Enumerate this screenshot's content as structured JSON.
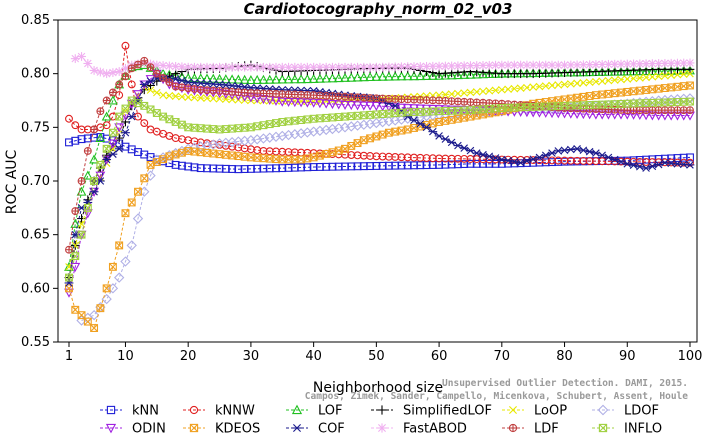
{
  "chart_data": {
    "type": "line",
    "title": "Cardiotocography_norm_02_v03",
    "xlabel": "Neighborhood size",
    "ylabel": "ROC AUC",
    "xlim": [
      1,
      100
    ],
    "ylim": [
      0.55,
      0.85
    ],
    "x_ticks": [
      1,
      10,
      20,
      30,
      40,
      50,
      60,
      70,
      80,
      90,
      100
    ],
    "y_ticks": [
      0.55,
      0.6,
      0.65,
      0.7,
      0.75,
      0.8,
      0.85
    ],
    "grid": false,
    "legend_position": "bottom",
    "credit": {
      "line1": "Campos, Zimek, Sander, Campello, Micenkova, Schubert, Assent, Houle",
      "line2": "Unsupervised Outlier Detection. DAMI, 2015."
    },
    "series": [
      {
        "name": "kNN",
        "color": "#1f1fd6",
        "marker": "square",
        "points": [
          [
            1,
            0.736
          ],
          [
            3,
            0.739
          ],
          [
            6,
            0.741
          ],
          [
            8,
            0.738
          ],
          [
            10,
            0.732
          ],
          [
            12,
            0.727
          ],
          [
            15,
            0.72
          ],
          [
            18,
            0.715
          ],
          [
            22,
            0.712
          ],
          [
            28,
            0.711
          ],
          [
            35,
            0.712
          ],
          [
            40,
            0.713
          ],
          [
            50,
            0.714
          ],
          [
            60,
            0.715
          ],
          [
            65,
            0.716
          ],
          [
            70,
            0.716
          ],
          [
            80,
            0.718
          ],
          [
            90,
            0.719
          ],
          [
            100,
            0.722
          ]
        ]
      },
      {
        "name": "kNNW",
        "color": "#e02020",
        "marker": "circle",
        "points": [
          [
            1,
            0.758
          ],
          [
            2,
            0.752
          ],
          [
            3,
            0.748
          ],
          [
            5,
            0.748
          ],
          [
            7,
            0.752
          ],
          [
            8,
            0.76
          ],
          [
            9,
            0.78
          ],
          [
            10,
            0.826
          ],
          [
            11,
            0.79
          ],
          [
            12,
            0.76
          ],
          [
            14,
            0.748
          ],
          [
            18,
            0.74
          ],
          [
            22,
            0.736
          ],
          [
            27,
            0.732
          ],
          [
            32,
            0.728
          ],
          [
            40,
            0.726
          ],
          [
            50,
            0.723
          ],
          [
            60,
            0.721
          ],
          [
            70,
            0.72
          ],
          [
            80,
            0.719
          ],
          [
            90,
            0.718
          ],
          [
            100,
            0.717
          ]
        ]
      },
      {
        "name": "LOF",
        "color": "#20c020",
        "marker": "triangle",
        "points": [
          [
            1,
            0.62
          ],
          [
            2,
            0.66
          ],
          [
            3,
            0.69
          ],
          [
            5,
            0.72
          ],
          [
            7,
            0.76
          ],
          [
            9,
            0.79
          ],
          [
            11,
            0.806
          ],
          [
            13,
            0.808
          ],
          [
            16,
            0.8
          ],
          [
            20,
            0.796
          ],
          [
            30,
            0.794
          ],
          [
            40,
            0.795
          ],
          [
            50,
            0.797
          ],
          [
            60,
            0.798
          ],
          [
            70,
            0.8
          ],
          [
            80,
            0.801
          ],
          [
            90,
            0.802
          ],
          [
            100,
            0.803
          ]
        ]
      },
      {
        "name": "SimplifiedLOF",
        "color": "#000000",
        "marker": "plus",
        "points": [
          [
            1,
            0.61
          ],
          [
            2,
            0.64
          ],
          [
            3,
            0.665
          ],
          [
            5,
            0.7
          ],
          [
            7,
            0.724
          ],
          [
            9,
            0.74
          ],
          [
            11,
            0.77
          ],
          [
            13,
            0.785
          ],
          [
            15,
            0.793
          ],
          [
            18,
            0.8
          ],
          [
            20,
            0.804
          ],
          [
            25,
            0.805
          ],
          [
            30,
            0.808
          ],
          [
            35,
            0.802
          ],
          [
            40,
            0.803
          ],
          [
            45,
            0.804
          ],
          [
            50,
            0.805
          ],
          [
            55,
            0.805
          ],
          [
            60,
            0.8
          ],
          [
            65,
            0.802
          ],
          [
            70,
            0.8
          ],
          [
            75,
            0.8
          ],
          [
            80,
            0.801
          ],
          [
            85,
            0.802
          ],
          [
            90,
            0.803
          ],
          [
            95,
            0.804
          ],
          [
            100,
            0.804
          ]
        ]
      },
      {
        "name": "LoOP",
        "color": "#e8e800",
        "marker": "cross",
        "points": [
          [
            1,
            0.62
          ],
          [
            3,
            0.66
          ],
          [
            5,
            0.69
          ],
          [
            8,
            0.73
          ],
          [
            10,
            0.765
          ],
          [
            13,
            0.787
          ],
          [
            16,
            0.78
          ],
          [
            20,
            0.778
          ],
          [
            30,
            0.775
          ],
          [
            40,
            0.774
          ],
          [
            50,
            0.776
          ],
          [
            60,
            0.78
          ],
          [
            70,
            0.785
          ],
          [
            80,
            0.79
          ],
          [
            90,
            0.795
          ],
          [
            100,
            0.8
          ]
        ]
      },
      {
        "name": "LDOF",
        "color": "#b0b0e6",
        "marker": "diamond",
        "points": [
          [
            3,
            0.57
          ],
          [
            5,
            0.575
          ],
          [
            7,
            0.59
          ],
          [
            9,
            0.61
          ],
          [
            11,
            0.64
          ],
          [
            13,
            0.69
          ],
          [
            15,
            0.72
          ],
          [
            20,
            0.73
          ],
          [
            25,
            0.735
          ],
          [
            30,
            0.738
          ],
          [
            35,
            0.742
          ],
          [
            40,
            0.746
          ],
          [
            45,
            0.75
          ],
          [
            50,
            0.754
          ],
          [
            55,
            0.758
          ],
          [
            60,
            0.762
          ],
          [
            65,
            0.764
          ],
          [
            70,
            0.765
          ],
          [
            75,
            0.767
          ],
          [
            80,
            0.768
          ],
          [
            85,
            0.77
          ],
          [
            90,
            0.772
          ],
          [
            95,
            0.775
          ],
          [
            100,
            0.777
          ]
        ]
      },
      {
        "name": "ODIN",
        "color": "#a020e0",
        "marker": "triangle-down",
        "points": [
          [
            1,
            0.596
          ],
          [
            2,
            0.62
          ],
          [
            3,
            0.65
          ],
          [
            5,
            0.69
          ],
          [
            7,
            0.72
          ],
          [
            9,
            0.75
          ],
          [
            11,
            0.772
          ],
          [
            13,
            0.79
          ],
          [
            15,
            0.8
          ],
          [
            17,
            0.79
          ],
          [
            20,
            0.785
          ],
          [
            25,
            0.782
          ],
          [
            30,
            0.778
          ],
          [
            35,
            0.774
          ],
          [
            40,
            0.773
          ],
          [
            45,
            0.771
          ],
          [
            50,
            0.77
          ],
          [
            55,
            0.768
          ],
          [
            60,
            0.767
          ],
          [
            65,
            0.766
          ],
          [
            70,
            0.765
          ],
          [
            75,
            0.764
          ],
          [
            80,
            0.763
          ],
          [
            85,
            0.762
          ],
          [
            90,
            0.762
          ],
          [
            95,
            0.761
          ],
          [
            100,
            0.761
          ]
        ]
      },
      {
        "name": "KDEOS",
        "color": "#f0a020",
        "marker": "square-x",
        "points": [
          [
            1,
            0.6
          ],
          [
            2,
            0.58
          ],
          [
            3,
            0.575
          ],
          [
            5,
            0.563
          ],
          [
            7,
            0.6
          ],
          [
            9,
            0.64
          ],
          [
            10,
            0.67
          ],
          [
            12,
            0.69
          ],
          [
            14,
            0.715
          ],
          [
            17,
            0.723
          ],
          [
            20,
            0.728
          ],
          [
            25,
            0.725
          ],
          [
            30,
            0.722
          ],
          [
            35,
            0.72
          ],
          [
            38,
            0.72
          ],
          [
            40,
            0.722
          ],
          [
            45,
            0.73
          ],
          [
            48,
            0.738
          ],
          [
            52,
            0.745
          ],
          [
            55,
            0.748
          ],
          [
            60,
            0.755
          ],
          [
            65,
            0.76
          ],
          [
            70,
            0.765
          ],
          [
            75,
            0.772
          ],
          [
            80,
            0.776
          ],
          [
            85,
            0.78
          ],
          [
            90,
            0.783
          ],
          [
            95,
            0.786
          ],
          [
            100,
            0.789
          ]
        ]
      },
      {
        "name": "COF",
        "color": "#1a1a8c",
        "marker": "asterisk",
        "points": [
          [
            1,
            0.605
          ],
          [
            2,
            0.65
          ],
          [
            3,
            0.675
          ],
          [
            4,
            0.68
          ],
          [
            5,
            0.69
          ],
          [
            6,
            0.7
          ],
          [
            7,
            0.72
          ],
          [
            9,
            0.73
          ],
          [
            11,
            0.76
          ],
          [
            13,
            0.79
          ],
          [
            15,
            0.796
          ],
          [
            18,
            0.795
          ],
          [
            20,
            0.792
          ],
          [
            25,
            0.79
          ],
          [
            30,
            0.787
          ],
          [
            35,
            0.785
          ],
          [
            40,
            0.784
          ],
          [
            45,
            0.78
          ],
          [
            50,
            0.777
          ],
          [
            53,
            0.77
          ],
          [
            55,
            0.76
          ],
          [
            58,
            0.75
          ],
          [
            60,
            0.742
          ],
          [
            63,
            0.733
          ],
          [
            66,
            0.726
          ],
          [
            70,
            0.72
          ],
          [
            73,
            0.717
          ],
          [
            76,
            0.722
          ],
          [
            79,
            0.728
          ],
          [
            82,
            0.73
          ],
          [
            85,
            0.726
          ],
          [
            87,
            0.722
          ],
          [
            90,
            0.716
          ],
          [
            93,
            0.712
          ],
          [
            96,
            0.717
          ],
          [
            100,
            0.715
          ]
        ]
      },
      {
        "name": "FastABOD",
        "color": "#f0b0f0",
        "marker": "star",
        "points": [
          [
            2,
            0.814
          ],
          [
            3,
            0.816
          ],
          [
            5,
            0.803
          ],
          [
            7,
            0.8
          ],
          [
            9,
            0.802
          ],
          [
            11,
            0.808
          ],
          [
            13,
            0.81
          ],
          [
            15,
            0.808
          ],
          [
            20,
            0.806
          ],
          [
            30,
            0.806
          ],
          [
            40,
            0.806
          ],
          [
            50,
            0.806
          ],
          [
            60,
            0.807
          ],
          [
            70,
            0.808
          ],
          [
            80,
            0.808
          ],
          [
            90,
            0.809
          ],
          [
            100,
            0.81
          ]
        ]
      },
      {
        "name": "LDF",
        "color": "#c04040",
        "marker": "circle-plus",
        "points": [
          [
            1,
            0.636
          ],
          [
            2,
            0.672
          ],
          [
            3,
            0.7
          ],
          [
            4,
            0.728
          ],
          [
            5,
            0.748
          ],
          [
            6,
            0.765
          ],
          [
            7,
            0.775
          ],
          [
            9,
            0.79
          ],
          [
            11,
            0.805
          ],
          [
            13,
            0.812
          ],
          [
            15,
            0.8
          ],
          [
            18,
            0.788
          ],
          [
            22,
            0.785
          ],
          [
            30,
            0.782
          ],
          [
            40,
            0.78
          ],
          [
            50,
            0.777
          ],
          [
            60,
            0.775
          ],
          [
            70,
            0.772
          ],
          [
            80,
            0.768
          ],
          [
            90,
            0.766
          ],
          [
            100,
            0.766
          ]
        ]
      },
      {
        "name": "INFLO",
        "color": "#a0d040",
        "marker": "square-x",
        "points": [
          [
            1,
            0.61
          ],
          [
            3,
            0.65
          ],
          [
            5,
            0.7
          ],
          [
            7,
            0.73
          ],
          [
            9,
            0.76
          ],
          [
            11,
            0.775
          ],
          [
            13,
            0.77
          ],
          [
            16,
            0.76
          ],
          [
            20,
            0.75
          ],
          [
            25,
            0.748
          ],
          [
            30,
            0.75
          ],
          [
            35,
            0.755
          ],
          [
            40,
            0.758
          ],
          [
            45,
            0.76
          ],
          [
            50,
            0.762
          ],
          [
            55,
            0.764
          ],
          [
            60,
            0.765
          ],
          [
            65,
            0.766
          ],
          [
            70,
            0.768
          ],
          [
            80,
            0.77
          ],
          [
            90,
            0.772
          ],
          [
            100,
            0.774
          ]
        ]
      }
    ]
  }
}
